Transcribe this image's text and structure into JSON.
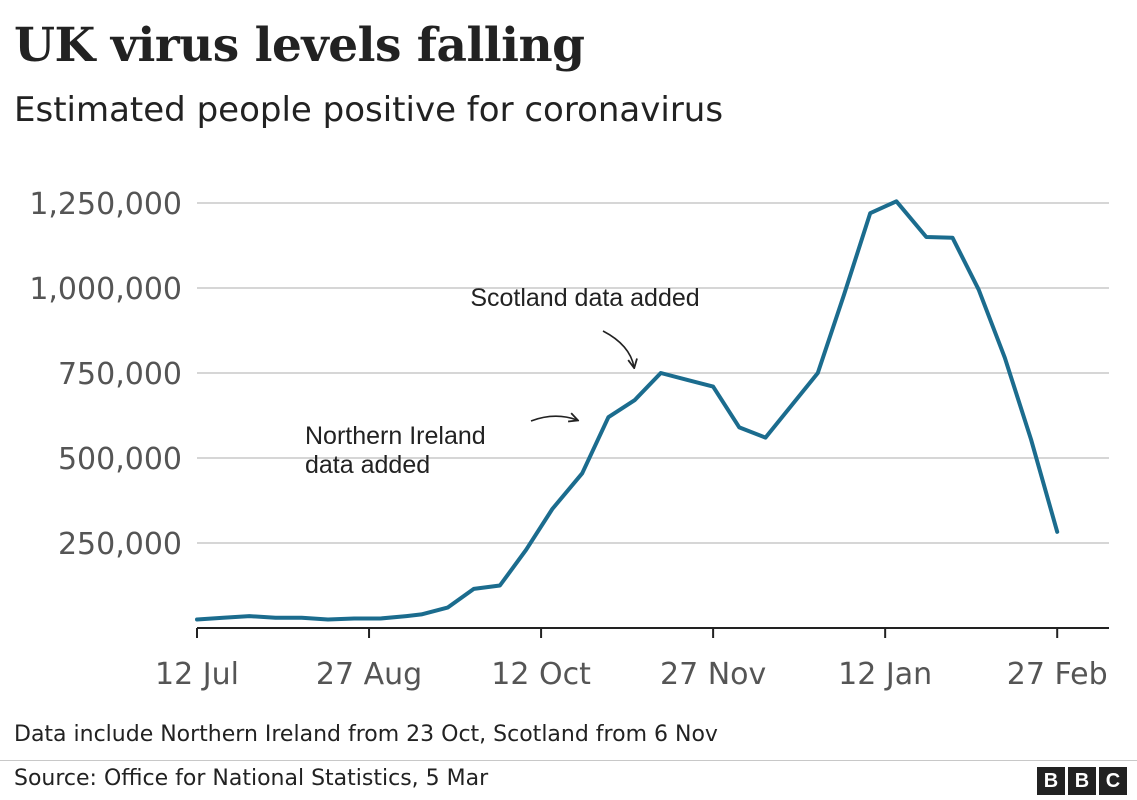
{
  "title": "UK virus levels falling",
  "subtitle": "Estimated people positive for coronavirus",
  "footnote": "Data include Northern Ireland from 23 Oct, Scotland from 6 Nov",
  "source": "Source: Office for National Statistics, 5 Mar",
  "logo": [
    "B",
    "B",
    "C"
  ],
  "colors": {
    "line": "#1b6c8e",
    "grid": "#c8c8c8",
    "axis": "#222222",
    "tick_text": "#555555"
  },
  "chart_data": {
    "type": "line",
    "title": "UK virus levels falling",
    "subtitle": "Estimated people positive for coronavirus",
    "xlabel": "",
    "ylabel": "",
    "ylim": [
      0,
      1250000
    ],
    "yticks": [
      250000,
      500000,
      750000,
      1000000,
      1250000
    ],
    "ytick_labels": [
      "250,000",
      "500,000",
      "750,000",
      "1,000,000",
      "1,250,000"
    ],
    "xlim_days": [
      0,
      233
    ],
    "xticks": [
      {
        "day": 0,
        "label": "12 Jul"
      },
      {
        "day": 46,
        "label": "27 Aug"
      },
      {
        "day": 92,
        "label": "12 Oct"
      },
      {
        "day": 138,
        "label": "27 Nov"
      },
      {
        "day": 184,
        "label": "12 Jan"
      },
      {
        "day": 230,
        "label": "27 Feb"
      }
    ],
    "series": [
      {
        "name": "Estimated people positive",
        "x_days": [
          0,
          7,
          14,
          21,
          28,
          35,
          42,
          49,
          56,
          60,
          67,
          74,
          81,
          88,
          95,
          103,
          110,
          117,
          124,
          131,
          138,
          145,
          152,
          159,
          166,
          173,
          180,
          187,
          195,
          202,
          209,
          216,
          223,
          230
        ],
        "values": [
          25000,
          30000,
          35000,
          30000,
          30000,
          25000,
          28000,
          28000,
          35000,
          40000,
          60000,
          115000,
          125000,
          230000,
          350000,
          455000,
          620000,
          670000,
          750000,
          730000,
          710000,
          590000,
          560000,
          655000,
          750000,
          980000,
          1220000,
          1255000,
          1150000,
          1148000,
          995000,
          795000,
          555000,
          283000
        ]
      }
    ],
    "annotations": [
      {
        "text_lines": [
          "Scotland data added"
        ],
        "x_day": 118,
        "value": 750000
      },
      {
        "text_lines": [
          "Northern Ireland",
          "data added"
        ],
        "x_day": 103,
        "value": 620000
      }
    ]
  }
}
